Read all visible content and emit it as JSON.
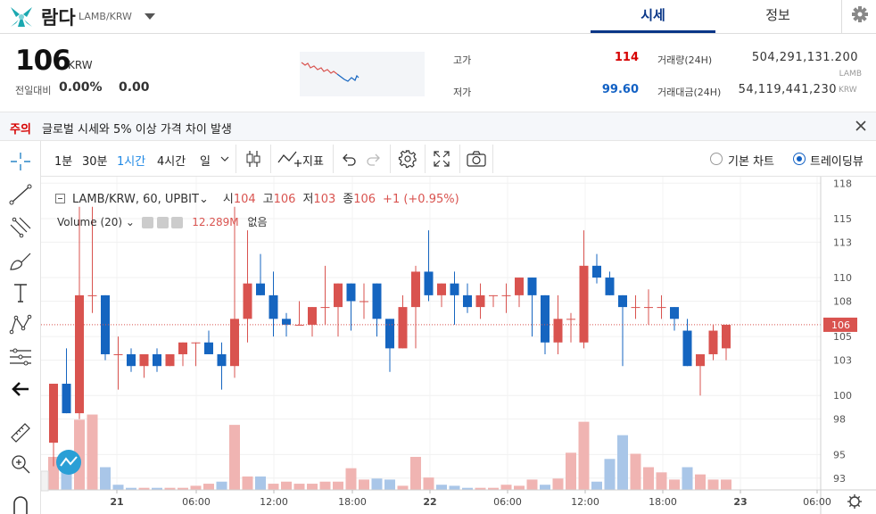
{
  "header": {
    "coin_name": "람다",
    "pair": "LAMB/KRW",
    "tabs": [
      {
        "label": "시세",
        "active": true
      },
      {
        "label": "정보",
        "active": false
      }
    ]
  },
  "ticker": {
    "price": "106",
    "price_unit": "KRW",
    "change_label": "전일대비",
    "change_pct": "0.00%",
    "change_val": "0.00",
    "high_label": "고가",
    "high": "114",
    "low_label": "저가",
    "low": "99.60",
    "volume_label": "거래량(24H)",
    "volume": "504,291,131.200",
    "volume_unit": "LAMB",
    "amount_label": "거래대금(24H)",
    "amount": "54,119,441,230",
    "amount_unit": "KRW"
  },
  "notice": {
    "tag": "주의",
    "text": "글로벌 시세와 5% 이상 가격 차이 발생"
  },
  "toolbar": {
    "intervals": [
      "1분",
      "30분",
      "1시간",
      "4시간",
      "일"
    ],
    "active_interval": "1시간",
    "indicator_label": "지표",
    "chart_basic": "기본 차트",
    "chart_tv": "트레이딩뷰"
  },
  "legend": {
    "symbol": "LAMB/KRW, 60, UPBIT",
    "o_label": "시",
    "o": "104",
    "h_label": "고",
    "h": "106",
    "l_label": "저",
    "l": "103",
    "c_label": "종",
    "c": "106",
    "change": "+1 (+0.95%)",
    "volume_label": "Volume (20)",
    "volume_value": "12.289M",
    "volume_extra": "없음"
  },
  "colors": {
    "up": "#d9534f",
    "down": "#1565c0",
    "up_vol": "#f0b4b2",
    "down_vol": "#a9c6e8",
    "accent": "#093687"
  },
  "chart_data": {
    "type": "candlestick",
    "y_ticks": [
      "118",
      "115",
      "113",
      "110",
      "108",
      "105",
      "103",
      "100",
      "98",
      "95",
      "93"
    ],
    "x_ticks": [
      "21",
      "06:00",
      "12:00",
      "18:00",
      "22",
      "06:00",
      "12:00",
      "18:00",
      "23",
      "06:00"
    ],
    "last_price": "106",
    "ylim": [
      92,
      118.4
    ],
    "candles": [
      {
        "o": 96,
        "h": 101,
        "l": 94,
        "c": 101
      },
      {
        "o": 101,
        "h": 104,
        "l": 98.5,
        "c": 98.5
      },
      {
        "o": 98.5,
        "h": 116,
        "l": 98,
        "c": 108.5
      },
      {
        "o": 108.5,
        "h": 116,
        "l": 107,
        "c": 108.5
      },
      {
        "o": 108.5,
        "h": 108.5,
        "l": 103,
        "c": 103.5
      },
      {
        "o": 103.5,
        "h": 105,
        "l": 100.5,
        "c": 103.5
      },
      {
        "o": 103.5,
        "h": 104,
        "l": 102,
        "c": 102.5
      },
      {
        "o": 102.5,
        "h": 103.5,
        "l": 101.5,
        "c": 103.5
      },
      {
        "o": 103.5,
        "h": 104,
        "l": 102,
        "c": 102.5
      },
      {
        "o": 102.5,
        "h": 103.5,
        "l": 102.5,
        "c": 103.5
      },
      {
        "o": 103.5,
        "h": 104.5,
        "l": 102.5,
        "c": 104.5
      },
      {
        "o": 104.5,
        "h": 104.5,
        "l": 102.5,
        "c": 104.5
      },
      {
        "o": 104.5,
        "h": 105.5,
        "l": 103.5,
        "c": 103.5
      },
      {
        "o": 103.5,
        "h": 104.5,
        "l": 100.5,
        "c": 102.5
      },
      {
        "o": 102.5,
        "h": 116,
        "l": 101.5,
        "c": 106.5
      },
      {
        "o": 106.5,
        "h": 114,
        "l": 104.5,
        "c": 109.5
      },
      {
        "o": 109.5,
        "h": 112,
        "l": 108.5,
        "c": 108.5
      },
      {
        "o": 108.5,
        "h": 110.5,
        "l": 105,
        "c": 106.5
      },
      {
        "o": 106.5,
        "h": 107,
        "l": 105,
        "c": 106
      },
      {
        "o": 106,
        "h": 108,
        "l": 106,
        "c": 106
      },
      {
        "o": 106,
        "h": 107.5,
        "l": 105,
        "c": 107.5
      },
      {
        "o": 107.5,
        "h": 111,
        "l": 106,
        "c": 107.5
      },
      {
        "o": 107.5,
        "h": 109.5,
        "l": 105,
        "c": 109.5
      },
      {
        "o": 109.5,
        "h": 109.5,
        "l": 105.5,
        "c": 108
      },
      {
        "o": 108,
        "h": 109.5,
        "l": 106.5,
        "c": 108
      },
      {
        "o": 109.5,
        "h": 109.5,
        "l": 105,
        "c": 106.5
      },
      {
        "o": 106.5,
        "h": 106.5,
        "l": 102,
        "c": 104
      },
      {
        "o": 104,
        "h": 108.5,
        "l": 104,
        "c": 107.5
      },
      {
        "o": 107.5,
        "h": 111,
        "l": 104,
        "c": 110.5
      },
      {
        "o": 110.5,
        "h": 114,
        "l": 108,
        "c": 108.5
      },
      {
        "o": 108.5,
        "h": 109.5,
        "l": 107.5,
        "c": 109.5
      },
      {
        "o": 109.5,
        "h": 110.5,
        "l": 106,
        "c": 108.5
      },
      {
        "o": 108.5,
        "h": 109.5,
        "l": 107,
        "c": 107.5
      },
      {
        "o": 107.5,
        "h": 109.5,
        "l": 106.5,
        "c": 108.5
      },
      {
        "o": 108.5,
        "h": 108.5,
        "l": 107.5,
        "c": 108.5
      },
      {
        "o": 108.5,
        "h": 109.5,
        "l": 107,
        "c": 108.5
      },
      {
        "o": 108.5,
        "h": 110,
        "l": 107.5,
        "c": 110
      },
      {
        "o": 110,
        "h": 110,
        "l": 105,
        "c": 108.5
      },
      {
        "o": 108.5,
        "h": 108.5,
        "l": 103.5,
        "c": 104.5
      },
      {
        "o": 104.5,
        "h": 108.5,
        "l": 103.5,
        "c": 106.5
      },
      {
        "o": 106.5,
        "h": 107,
        "l": 104.5,
        "c": 106.5
      },
      {
        "o": 104.5,
        "h": 114,
        "l": 104,
        "c": 111
      },
      {
        "o": 111,
        "h": 112,
        "l": 109.5,
        "c": 110
      },
      {
        "o": 110,
        "h": 110.5,
        "l": 108.5,
        "c": 108.5
      },
      {
        "o": 108.5,
        "h": 108.5,
        "l": 102.5,
        "c": 107.5
      },
      {
        "o": 107.5,
        "h": 108.5,
        "l": 106.5,
        "c": 107.5
      },
      {
        "o": 107.5,
        "h": 109,
        "l": 106,
        "c": 107.5
      },
      {
        "o": 107.5,
        "h": 108.5,
        "l": 106.5,
        "c": 107.5
      },
      {
        "o": 107.5,
        "h": 107.5,
        "l": 105.5,
        "c": 106.5
      },
      {
        "o": 105.5,
        "h": 106.5,
        "l": 102.5,
        "c": 102.5
      },
      {
        "o": 102.5,
        "h": 103.5,
        "l": 100,
        "c": 103.5
      },
      {
        "o": 103.5,
        "h": 106,
        "l": 103,
        "c": 105.5
      },
      {
        "o": 104,
        "h": 106,
        "l": 103,
        "c": 106
      }
    ],
    "volume": [
      {
        "v": 0.32,
        "up": true
      },
      {
        "v": 0.25,
        "up": false
      },
      {
        "v": 0.68,
        "up": true
      },
      {
        "v": 0.73,
        "up": true
      },
      {
        "v": 0.22,
        "up": false
      },
      {
        "v": 0.05,
        "up": false
      },
      {
        "v": 0.02,
        "up": false
      },
      {
        "v": 0.02,
        "up": true
      },
      {
        "v": 0.02,
        "up": false
      },
      {
        "v": 0.02,
        "up": true
      },
      {
        "v": 0.02,
        "up": true
      },
      {
        "v": 0.04,
        "up": true
      },
      {
        "v": 0.06,
        "up": true
      },
      {
        "v": 0.08,
        "up": false
      },
      {
        "v": 0.63,
        "up": true
      },
      {
        "v": 0.13,
        "up": true
      },
      {
        "v": 0.13,
        "up": false
      },
      {
        "v": 0.06,
        "up": true
      },
      {
        "v": 0.08,
        "up": true
      },
      {
        "v": 0.06,
        "up": true
      },
      {
        "v": 0.06,
        "up": true
      },
      {
        "v": 0.08,
        "up": true
      },
      {
        "v": 0.08,
        "up": true
      },
      {
        "v": 0.21,
        "up": true
      },
      {
        "v": 0.1,
        "up": true
      },
      {
        "v": 0.11,
        "up": false
      },
      {
        "v": 0.1,
        "up": false
      },
      {
        "v": 0.04,
        "up": true
      },
      {
        "v": 0.32,
        "up": true
      },
      {
        "v": 0.12,
        "up": true
      },
      {
        "v": 0.05,
        "up": false
      },
      {
        "v": 0.04,
        "up": false
      },
      {
        "v": 0.02,
        "up": false
      },
      {
        "v": 0.02,
        "up": true
      },
      {
        "v": 0.02,
        "up": true
      },
      {
        "v": 0.05,
        "up": true
      },
      {
        "v": 0.04,
        "up": true
      },
      {
        "v": 0.1,
        "up": true
      },
      {
        "v": 0.05,
        "up": false
      },
      {
        "v": 0.11,
        "up": true
      },
      {
        "v": 0.36,
        "up": true
      },
      {
        "v": 0.66,
        "up": true
      },
      {
        "v": 0.08,
        "up": false
      },
      {
        "v": 0.3,
        "up": false
      },
      {
        "v": 0.53,
        "up": false
      },
      {
        "v": 0.35,
        "up": true
      },
      {
        "v": 0.22,
        "up": true
      },
      {
        "v": 0.17,
        "up": true
      },
      {
        "v": 0.1,
        "up": true
      },
      {
        "v": 0.22,
        "up": false
      },
      {
        "v": 0.15,
        "up": true
      },
      {
        "v": 0.1,
        "up": true
      },
      {
        "v": 0.1,
        "up": true
      }
    ]
  }
}
